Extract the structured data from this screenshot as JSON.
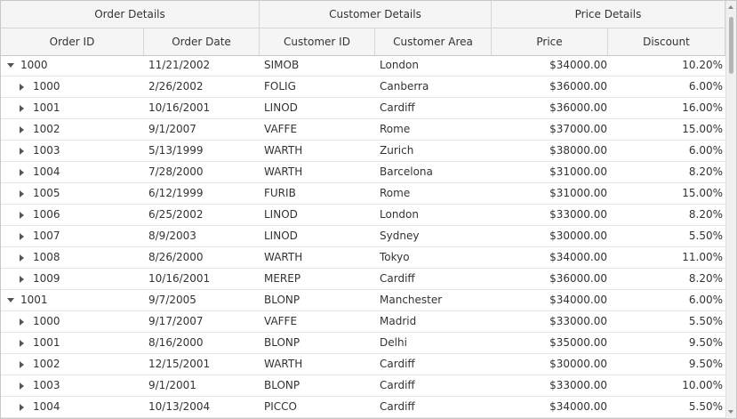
{
  "header": {
    "groups": [
      {
        "label": "Order Details"
      },
      {
        "label": "Customer Details"
      },
      {
        "label": "Price Details"
      }
    ],
    "columns": [
      {
        "label": "Order ID"
      },
      {
        "label": "Order Date"
      },
      {
        "label": "Customer ID"
      },
      {
        "label": "Customer Area"
      },
      {
        "label": "Price"
      },
      {
        "label": "Discount"
      }
    ]
  },
  "rows": [
    {
      "level": 0,
      "expanded": true,
      "order_id": "1000",
      "order_date": "11/21/2002",
      "customer_id": "SIMOB",
      "area": "London",
      "price": "$34000.00",
      "discount": "10.20%"
    },
    {
      "level": 1,
      "expanded": false,
      "order_id": "1000",
      "order_date": "2/26/2002",
      "customer_id": "FOLIG",
      "area": "Canberra",
      "price": "$36000.00",
      "discount": "6.00%"
    },
    {
      "level": 1,
      "expanded": false,
      "order_id": "1001",
      "order_date": "10/16/2001",
      "customer_id": "LINOD",
      "area": "Cardiff",
      "price": "$36000.00",
      "discount": "16.00%"
    },
    {
      "level": 1,
      "expanded": false,
      "order_id": "1002",
      "order_date": "9/1/2007",
      "customer_id": "VAFFE",
      "area": "Rome",
      "price": "$37000.00",
      "discount": "15.00%"
    },
    {
      "level": 1,
      "expanded": false,
      "order_id": "1003",
      "order_date": "5/13/1999",
      "customer_id": "WARTH",
      "area": "Zurich",
      "price": "$38000.00",
      "discount": "6.00%"
    },
    {
      "level": 1,
      "expanded": false,
      "order_id": "1004",
      "order_date": "7/28/2000",
      "customer_id": "WARTH",
      "area": "Barcelona",
      "price": "$31000.00",
      "discount": "8.20%"
    },
    {
      "level": 1,
      "expanded": false,
      "order_id": "1005",
      "order_date": "6/12/1999",
      "customer_id": "FURIB",
      "area": "Rome",
      "price": "$31000.00",
      "discount": "15.00%"
    },
    {
      "level": 1,
      "expanded": false,
      "order_id": "1006",
      "order_date": "6/25/2002",
      "customer_id": "LINOD",
      "area": "London",
      "price": "$33000.00",
      "discount": "8.20%"
    },
    {
      "level": 1,
      "expanded": false,
      "order_id": "1007",
      "order_date": "8/9/2003",
      "customer_id": "LINOD",
      "area": "Sydney",
      "price": "$30000.00",
      "discount": "5.50%"
    },
    {
      "level": 1,
      "expanded": false,
      "order_id": "1008",
      "order_date": "8/26/2000",
      "customer_id": "WARTH",
      "area": "Tokyo",
      "price": "$34000.00",
      "discount": "11.00%"
    },
    {
      "level": 1,
      "expanded": false,
      "order_id": "1009",
      "order_date": "10/16/2001",
      "customer_id": "MEREP",
      "area": "Cardiff",
      "price": "$36000.00",
      "discount": "8.20%"
    },
    {
      "level": 0,
      "expanded": true,
      "order_id": "1001",
      "order_date": "9/7/2005",
      "customer_id": "BLONP",
      "area": "Manchester",
      "price": "$34000.00",
      "discount": "6.00%"
    },
    {
      "level": 1,
      "expanded": false,
      "order_id": "1000",
      "order_date": "9/17/2007",
      "customer_id": "VAFFE",
      "area": "Madrid",
      "price": "$33000.00",
      "discount": "5.50%"
    },
    {
      "level": 1,
      "expanded": false,
      "order_id": "1001",
      "order_date": "8/16/2000",
      "customer_id": "BLONP",
      "area": "Delhi",
      "price": "$35000.00",
      "discount": "9.50%"
    },
    {
      "level": 1,
      "expanded": false,
      "order_id": "1002",
      "order_date": "12/15/2001",
      "customer_id": "WARTH",
      "area": "Cardiff",
      "price": "$30000.00",
      "discount": "9.50%"
    },
    {
      "level": 1,
      "expanded": false,
      "order_id": "1003",
      "order_date": "9/1/2001",
      "customer_id": "BLONP",
      "area": "Cardiff",
      "price": "$33000.00",
      "discount": "10.00%"
    },
    {
      "level": 1,
      "expanded": false,
      "order_id": "1004",
      "order_date": "10/13/2004",
      "customer_id": "PICCO",
      "area": "Cardiff",
      "price": "$34000.00",
      "discount": "5.50%"
    }
  ]
}
